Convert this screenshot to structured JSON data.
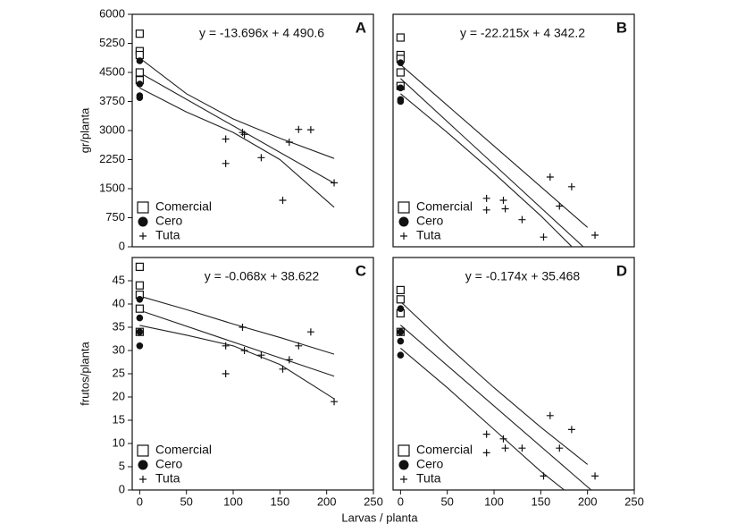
{
  "chart_data": [
    {
      "type": "scatter",
      "panel": "A",
      "equation": "y = -13.696x + 4 490.6",
      "ylabel": "gr/planta",
      "xlim": [
        -8,
        250
      ],
      "ylim": [
        0,
        6000
      ],
      "yticks": [
        0,
        750,
        1500,
        2250,
        3000,
        3750,
        4500,
        5250,
        6000
      ],
      "series": [
        {
          "name": "Comercial",
          "marker": "square",
          "color": "#111",
          "x": [
            0,
            0,
            0,
            0,
            0
          ],
          "y": [
            5500,
            5050,
            4950,
            4500,
            4300
          ]
        },
        {
          "name": "Cero",
          "marker": "circle",
          "color": "#111",
          "x": [
            0,
            0,
            0,
            0
          ],
          "y": [
            4800,
            4200,
            3900,
            3850
          ]
        },
        {
          "name": "Tuta",
          "marker": "plus",
          "color": "#111",
          "x": [
            92,
            92,
            110,
            112,
            130,
            153,
            160,
            170,
            183,
            208
          ],
          "y": [
            2780,
            2150,
            2950,
            2900,
            2300,
            1200,
            2700,
            3030,
            3020,
            1650
          ]
        }
      ],
      "fit": {
        "x": [
          0,
          208
        ],
        "y": [
          4490.6,
          1641.8
        ]
      },
      "band": {
        "x": [
          0,
          50,
          100,
          150,
          208
        ],
        "upper": [
          4870,
          3950,
          3300,
          2800,
          2280
        ],
        "lower": [
          4100,
          3480,
          2950,
          2250,
          1020
        ]
      }
    },
    {
      "type": "scatter",
      "panel": "B",
      "equation": "y = -22.215x + 4 342.2",
      "xlim": [
        -8,
        250
      ],
      "ylim": [
        0,
        6000
      ],
      "series": [
        {
          "name": "Comercial",
          "marker": "square",
          "color": "#111",
          "x": [
            0,
            0,
            0,
            0,
            0
          ],
          "y": [
            5400,
            4950,
            4850,
            4500,
            4150
          ]
        },
        {
          "name": "Cero",
          "marker": "circle",
          "color": "#111",
          "x": [
            0,
            0,
            0,
            0
          ],
          "y": [
            4750,
            4100,
            3800,
            3750
          ]
        },
        {
          "name": "Tuta",
          "marker": "plus",
          "color": "#111",
          "x": [
            92,
            92,
            110,
            112,
            130,
            153,
            160,
            170,
            183,
            208
          ],
          "y": [
            1250,
            950,
            1200,
            980,
            700,
            250,
            1800,
            1050,
            1550,
            300
          ]
        }
      ],
      "fit": {
        "x": [
          0,
          208
        ],
        "y": [
          4342.2,
          -278.5
        ]
      },
      "band": {
        "x": [
          0,
          50,
          100,
          150,
          200
        ],
        "upper": [
          4700,
          3650,
          2600,
          1550,
          500
        ],
        "lower": [
          3950,
          2950,
          1900,
          800,
          -400
        ]
      }
    },
    {
      "type": "scatter",
      "panel": "C",
      "equation": "y = -0.068x + 38.622",
      "ylabel": "frutos/planta",
      "xlabel": "Larvas / planta",
      "xlim": [
        -8,
        250
      ],
      "xticks": [
        0,
        50,
        100,
        150,
        200,
        250
      ],
      "ylim": [
        0,
        50
      ],
      "yticks": [
        0,
        5,
        10,
        15,
        20,
        25,
        30,
        35,
        40,
        45
      ],
      "series": [
        {
          "name": "Comercial",
          "marker": "square",
          "color": "#111",
          "x": [
            0,
            0,
            0,
            0,
            0
          ],
          "y": [
            48,
            44,
            42,
            39,
            34
          ]
        },
        {
          "name": "Cero",
          "marker": "circle",
          "color": "#111",
          "x": [
            0,
            0,
            0,
            0
          ],
          "y": [
            41,
            37,
            34,
            31
          ]
        },
        {
          "name": "Tuta",
          "marker": "plus",
          "color": "#111",
          "x": [
            92,
            92,
            110,
            112,
            130,
            153,
            160,
            170,
            183,
            208
          ],
          "y": [
            31,
            25,
            35,
            30,
            29,
            26,
            28,
            31,
            34,
            19
          ]
        }
      ],
      "fit": {
        "x": [
          0,
          208
        ],
        "y": [
          38.622,
          24.478
        ]
      },
      "band": {
        "x": [
          0,
          50,
          100,
          150,
          208
        ],
        "upper": [
          41.7,
          38.8,
          35.7,
          32.8,
          29.2
        ],
        "lower": [
          35.4,
          33.3,
          31,
          27,
          19.6
        ]
      }
    },
    {
      "type": "scatter",
      "panel": "D",
      "equation": "y = -0.174x + 35.468",
      "xlim": [
        -8,
        250
      ],
      "xticks": [
        0,
        50,
        100,
        150,
        200,
        250
      ],
      "ylim": [
        0,
        50
      ],
      "series": [
        {
          "name": "Comercial",
          "marker": "square",
          "color": "#111",
          "x": [
            0,
            0,
            0,
            0
          ],
          "y": [
            43,
            41,
            38,
            34
          ]
        },
        {
          "name": "Cero",
          "marker": "circle",
          "color": "#111",
          "x": [
            0,
            0,
            0,
            0
          ],
          "y": [
            39,
            34,
            32,
            29
          ]
        },
        {
          "name": "Tuta",
          "marker": "plus",
          "color": "#111",
          "x": [
            92,
            92,
            110,
            112,
            130,
            153,
            160,
            170,
            183,
            208
          ],
          "y": [
            12,
            8,
            11,
            9,
            9,
            3,
            16,
            9,
            13,
            3
          ]
        }
      ],
      "fit": {
        "x": [
          0,
          208
        ],
        "y": [
          35.468,
          -0.724
        ]
      },
      "band": {
        "x": [
          0,
          50,
          100,
          150,
          200
        ],
        "upper": [
          40.5,
          31,
          22,
          13.5,
          5.5
        ],
        "lower": [
          30.5,
          22,
          13,
          4,
          -4
        ]
      }
    }
  ]
}
